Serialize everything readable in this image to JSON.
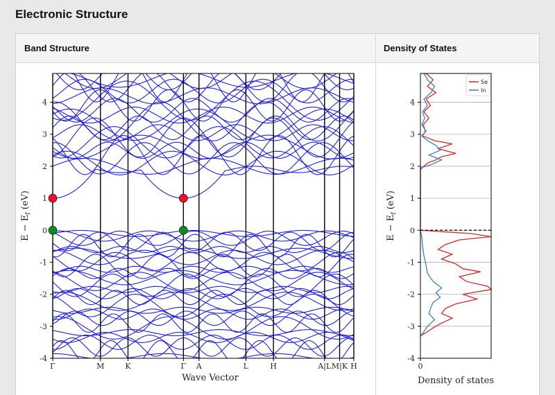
{
  "page": {
    "title": "Electronic Structure",
    "columns": [
      {
        "label": "Band Structure"
      },
      {
        "label": "Density of States"
      }
    ]
  },
  "chart_data": [
    {
      "type": "line",
      "title": "",
      "xlabel": "Wave Vector",
      "ylabel": "E − E_f (eV)",
      "ylim": [
        -4,
        4.9
      ],
      "yticks": [
        -4,
        -3,
        -2,
        -1,
        0,
        1,
        2,
        3,
        4
      ],
      "line_color": "#1f1fe0",
      "kpoints": [
        {
          "label": "Γ",
          "x": 0
        },
        {
          "label": "M",
          "x": 0.168
        },
        {
          "label": "K",
          "x": 0.265
        },
        {
          "label": "Γ",
          "x": 0.46
        },
        {
          "label": "A",
          "x": 0.515
        },
        {
          "label": "L",
          "x": 0.68
        },
        {
          "label": "H",
          "x": 0.777
        },
        {
          "label": "A|L",
          "x": 0.957
        },
        {
          "label": "M|K",
          "x": 1.01
        },
        {
          "label": "H",
          "x": 1.06
        }
      ],
      "xmax": 1.06,
      "special_points": [
        {
          "kind": "cbm",
          "x": 0,
          "y": 1.0,
          "color": "#e8102a"
        },
        {
          "kind": "cbm",
          "x": 0.46,
          "y": 1.0,
          "color": "#e8102a"
        },
        {
          "kind": "vbm",
          "x": 0,
          "y": 0.0,
          "color": "#0f8a1e"
        },
        {
          "kind": "vbm",
          "x": 0.46,
          "y": 0.0,
          "color": "#0f8a1e"
        }
      ]
    },
    {
      "type": "line",
      "title": "",
      "xlabel": "Density of states",
      "ylabel": "E − E_f (eV)",
      "ylim": [
        -4,
        4.9
      ],
      "yticks": [
        -4,
        -3,
        -2,
        -1,
        0,
        1,
        2,
        3,
        4
      ],
      "xticks": [
        0
      ],
      "grid": true,
      "fermi_line": 0,
      "legend": "top-right",
      "series": [
        {
          "name": "Se",
          "color": "#d62728",
          "points": [
            [
              4.9,
              0.08
            ],
            [
              4.7,
              0.18
            ],
            [
              4.5,
              0.1
            ],
            [
              4.3,
              0.22
            ],
            [
              4.1,
              0.08
            ],
            [
              3.9,
              0.14
            ],
            [
              3.7,
              0.05
            ],
            [
              3.5,
              0.12
            ],
            [
              3.3,
              0.04
            ],
            [
              3.1,
              0.07
            ],
            [
              2.95,
              0.03
            ],
            [
              2.8,
              0.2
            ],
            [
              2.7,
              0.45
            ],
            [
              2.55,
              0.25
            ],
            [
              2.4,
              0.5
            ],
            [
              2.3,
              0.3
            ],
            [
              2.2,
              0.22
            ],
            [
              2.1,
              0.1
            ],
            [
              2.0,
              0.05
            ],
            [
              1.9,
              0.0
            ],
            [
              0.0,
              0.0
            ],
            [
              -0.1,
              0.7
            ],
            [
              -0.2,
              1.0
            ],
            [
              -0.3,
              0.55
            ],
            [
              -0.45,
              0.35
            ],
            [
              -0.6,
              0.25
            ],
            [
              -0.75,
              0.45
            ],
            [
              -0.9,
              0.3
            ],
            [
              -1.05,
              0.5
            ],
            [
              -1.2,
              0.6
            ],
            [
              -1.3,
              0.85
            ],
            [
              -1.45,
              0.55
            ],
            [
              -1.6,
              0.65
            ],
            [
              -1.75,
              0.95
            ],
            [
              -1.85,
              1.0
            ],
            [
              -2.0,
              0.6
            ],
            [
              -2.15,
              0.8
            ],
            [
              -2.3,
              0.5
            ],
            [
              -2.45,
              0.35
            ],
            [
              -2.6,
              0.3
            ],
            [
              -2.75,
              0.45
            ],
            [
              -2.9,
              0.3
            ],
            [
              -3.05,
              0.18
            ],
            [
              -3.2,
              0.08
            ],
            [
              -3.3,
              0.0
            ]
          ]
        },
        {
          "name": "In",
          "color": "#3b7fbf",
          "points": [
            [
              4.9,
              0.05
            ],
            [
              4.7,
              0.1
            ],
            [
              4.5,
              0.2
            ],
            [
              4.3,
              0.15
            ],
            [
              4.1,
              0.05
            ],
            [
              3.9,
              0.1
            ],
            [
              3.7,
              0.03
            ],
            [
              3.5,
              0.06
            ],
            [
              3.3,
              0.02
            ],
            [
              3.1,
              0.08
            ],
            [
              2.95,
              0.02
            ],
            [
              2.8,
              0.1
            ],
            [
              2.65,
              0.22
            ],
            [
              2.5,
              0.28
            ],
            [
              2.35,
              0.12
            ],
            [
              2.2,
              0.3
            ],
            [
              2.05,
              0.15
            ],
            [
              1.95,
              0.0
            ],
            [
              0.0,
              0.0
            ],
            [
              -0.2,
              0.02
            ],
            [
              -0.5,
              0.03
            ],
            [
              -0.8,
              0.05
            ],
            [
              -1.1,
              0.08
            ],
            [
              -1.35,
              0.1
            ],
            [
              -1.6,
              0.18
            ],
            [
              -1.8,
              0.3
            ],
            [
              -1.95,
              0.22
            ],
            [
              -2.1,
              0.28
            ],
            [
              -2.25,
              0.18
            ],
            [
              -2.4,
              0.15
            ],
            [
              -2.6,
              0.12
            ],
            [
              -2.8,
              0.2
            ],
            [
              -3.0,
              0.1
            ],
            [
              -3.2,
              0.04
            ],
            [
              -3.3,
              0.0
            ]
          ]
        }
      ]
    }
  ]
}
